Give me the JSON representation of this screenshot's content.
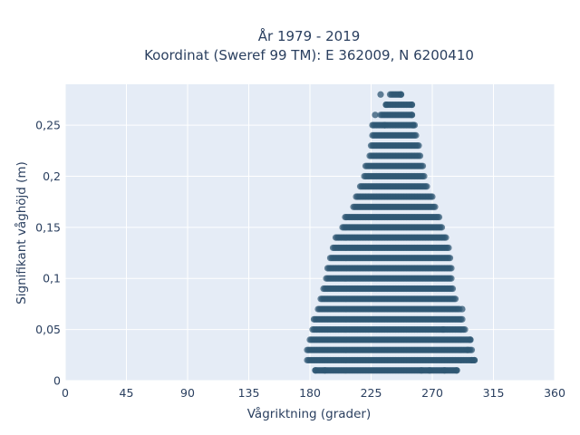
{
  "chart_data": {
    "type": "scatter",
    "title_line1": "År 1979 - 2019",
    "title_line2": "Koordinat (Sweref 99 TM): E 362009, N 6200410",
    "xlabel": "Vågriktning (grader)",
    "ylabel": "Signifikant våghöjd (m)",
    "xlim": [
      0,
      360
    ],
    "ylim": [
      0,
      0.29
    ],
    "x_ticks": [
      0,
      45,
      90,
      135,
      180,
      225,
      270,
      315,
      360
    ],
    "x_tick_labels": [
      "0",
      "45",
      "90",
      "135",
      "180",
      "225",
      "270",
      "315",
      "360"
    ],
    "y_ticks": [
      0,
      0.05,
      0.1,
      0.15,
      0.2,
      0.25
    ],
    "y_tick_labels": [
      "0",
      "0,05",
      "0,1",
      "0,15",
      "0,2",
      "0,25"
    ],
    "grid": true,
    "legend": "none",
    "marker_color": "#2f5773",
    "background_color": "#e5ecf6",
    "rows": [
      {
        "y": 0.01,
        "xmin": 184,
        "xmax": 288
      },
      {
        "y": 0.02,
        "xmin": 178,
        "xmax": 301
      },
      {
        "y": 0.03,
        "xmin": 178,
        "xmax": 299
      },
      {
        "y": 0.04,
        "xmin": 180,
        "xmax": 298
      },
      {
        "y": 0.05,
        "xmin": 182,
        "xmax": 294
      },
      {
        "y": 0.06,
        "xmin": 184,
        "xmax": 292
      },
      {
        "y": 0.07,
        "xmin": 186,
        "xmax": 290
      },
      {
        "y": 0.08,
        "xmin": 188,
        "xmax": 287
      },
      {
        "y": 0.09,
        "xmin": 190,
        "xmax": 285
      },
      {
        "y": 0.1,
        "xmin": 192,
        "xmax": 284
      },
      {
        "y": 0.11,
        "xmin": 193,
        "xmax": 284
      },
      {
        "y": 0.12,
        "xmin": 195,
        "xmax": 283
      },
      {
        "y": 0.13,
        "xmin": 197,
        "xmax": 282
      },
      {
        "y": 0.14,
        "xmin": 199,
        "xmax": 280
      },
      {
        "y": 0.15,
        "xmin": 204,
        "xmax": 277
      },
      {
        "y": 0.16,
        "xmin": 207,
        "xmax": 275
      },
      {
        "y": 0.17,
        "xmin": 212,
        "xmax": 272
      },
      {
        "y": 0.18,
        "xmin": 214,
        "xmax": 270
      },
      {
        "y": 0.19,
        "xmin": 217,
        "xmax": 266
      },
      {
        "y": 0.2,
        "xmin": 220,
        "xmax": 264
      },
      {
        "y": 0.21,
        "xmin": 221,
        "xmax": 263
      },
      {
        "y": 0.22,
        "xmin": 224,
        "xmax": 261
      },
      {
        "y": 0.23,
        "xmin": 225,
        "xmax": 260
      },
      {
        "y": 0.24,
        "xmin": 226,
        "xmax": 258
      },
      {
        "y": 0.25,
        "xmin": 227,
        "xmax": 257
      },
      {
        "y": 0.26,
        "xmin": 232,
        "xmax": 255
      },
      {
        "y": 0.27,
        "xmin": 236,
        "xmax": 255
      },
      {
        "y": 0.28,
        "xmin": 239,
        "xmax": 247
      }
    ],
    "outliers": [
      {
        "x": 184,
        "y": 0.01
      },
      {
        "x": 191,
        "y": 0.01
      },
      {
        "x": 262,
        "y": 0.01
      },
      {
        "x": 268,
        "y": 0.01
      },
      {
        "x": 279,
        "y": 0.01
      },
      {
        "x": 288,
        "y": 0.01
      },
      {
        "x": 299,
        "y": 0.02
      },
      {
        "x": 301,
        "y": 0.02
      },
      {
        "x": 296,
        "y": 0.03
      },
      {
        "x": 298,
        "y": 0.04
      },
      {
        "x": 183,
        "y": 0.06
      },
      {
        "x": 292,
        "y": 0.07
      },
      {
        "x": 278,
        "y": 0.05
      },
      {
        "x": 206,
        "y": 0.16
      },
      {
        "x": 232,
        "y": 0.28
      },
      {
        "x": 247,
        "y": 0.28
      },
      {
        "x": 236,
        "y": 0.27
      },
      {
        "x": 255,
        "y": 0.27
      },
      {
        "x": 228,
        "y": 0.26
      },
      {
        "x": 255,
        "y": 0.26
      },
      {
        "x": 226,
        "y": 0.25
      },
      {
        "x": 235,
        "y": 0.25
      },
      {
        "x": 256,
        "y": 0.25
      }
    ]
  }
}
